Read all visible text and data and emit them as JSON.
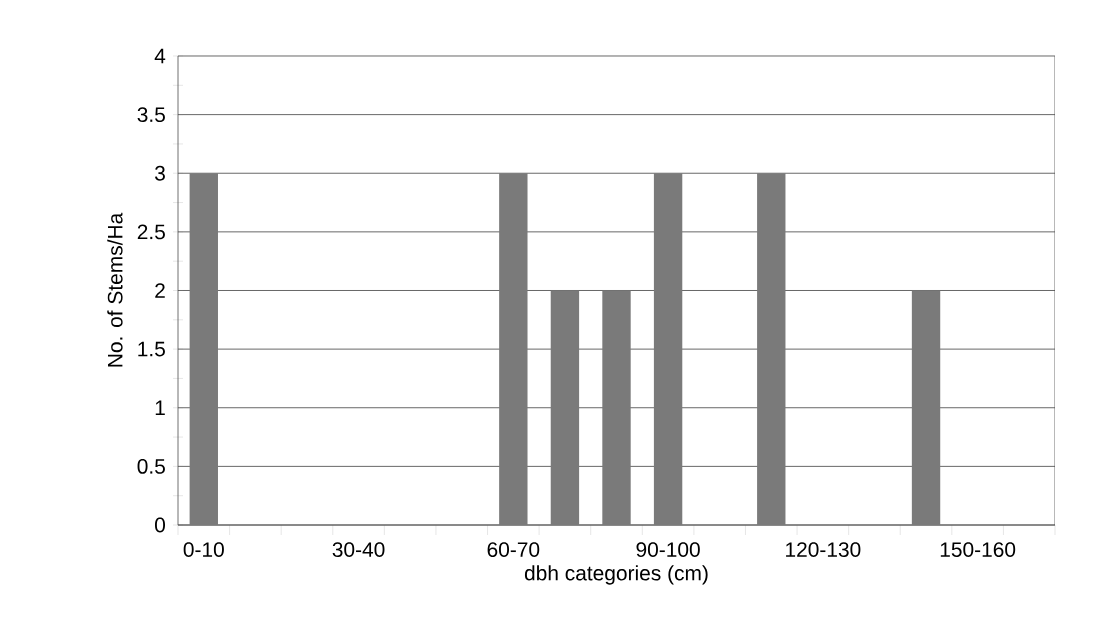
{
  "chart_data": {
    "type": "bar",
    "xlabel": "dbh categories (cm)",
    "ylabel": "No. of Stems/Ha",
    "categories": [
      "0-10",
      null,
      null,
      "30-40",
      null,
      null,
      "60-70",
      null,
      null,
      "90-100",
      null,
      null,
      "120-130",
      null,
      null,
      "150-160",
      null
    ],
    "values": [
      3,
      0,
      0,
      0,
      0,
      0,
      3,
      2,
      2,
      3,
      0,
      3,
      0,
      0,
      2,
      0,
      0
    ],
    "color": "#7a7a7a",
    "ylim": [
      0,
      4
    ],
    "yticks": [
      0,
      0.5,
      1,
      1.5,
      2,
      2.5,
      3,
      3.5,
      4
    ],
    "grid": "y"
  }
}
